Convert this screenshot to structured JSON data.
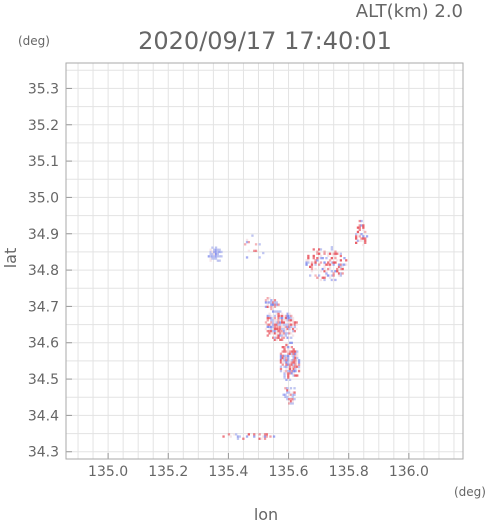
{
  "chart_data": {
    "type": "heatmap",
    "title": "2020/09/17 17:40:01",
    "subtitle": "ALT(km) 2.0",
    "xlabel": "lon",
    "ylabel": "lat",
    "xunit": "(deg)",
    "yunit": "(deg)",
    "xlim": [
      134.86,
      136.18
    ],
    "ylim": [
      34.28,
      35.37
    ],
    "xticks": [
      "135.0",
      "135.2",
      "135.4",
      "135.6",
      "135.8",
      "136.0"
    ],
    "yticks": [
      "34.3",
      "34.4",
      "34.5",
      "34.6",
      "34.7",
      "34.8",
      "34.9",
      "35.0",
      "35.1",
      "35.2",
      "35.3"
    ],
    "grid": true,
    "colors": {
      "positive": "#e8505a",
      "negative": "#5a68e8",
      "faint_negative": "#b8bff0"
    },
    "clusters": [
      {
        "lon": 135.35,
        "lat": 34.845,
        "rlon": 0.025,
        "rlat": 0.022,
        "mean": -0.55,
        "density": 1.0
      },
      {
        "lon": 135.57,
        "lat": 34.65,
        "rlon": 0.055,
        "rlat": 0.045,
        "mean": 0.0,
        "density": 0.95
      },
      {
        "lon": 135.6,
        "lat": 34.55,
        "rlon": 0.035,
        "rlat": 0.055,
        "mean": 0.0,
        "density": 0.9
      },
      {
        "lon": 135.6,
        "lat": 34.46,
        "rlon": 0.02,
        "rlat": 0.03,
        "mean": 0.1,
        "density": 0.7
      },
      {
        "lon": 135.54,
        "lat": 34.71,
        "rlon": 0.025,
        "rlat": 0.02,
        "mean": 0.0,
        "density": 0.85
      },
      {
        "lon": 135.72,
        "lat": 34.82,
        "rlon": 0.07,
        "rlat": 0.05,
        "mean": 0.1,
        "density": 0.45
      },
      {
        "lon": 135.84,
        "lat": 34.9,
        "rlon": 0.025,
        "rlat": 0.04,
        "mean": 0.2,
        "density": 0.45
      },
      {
        "lon": 135.48,
        "lat": 34.86,
        "rlon": 0.04,
        "rlat": 0.04,
        "mean": 0.0,
        "density": 0.2
      },
      {
        "lon": 135.47,
        "lat": 34.345,
        "rlon": 0.09,
        "rlat": 0.012,
        "mean": 0.0,
        "density": 0.3
      }
    ]
  }
}
